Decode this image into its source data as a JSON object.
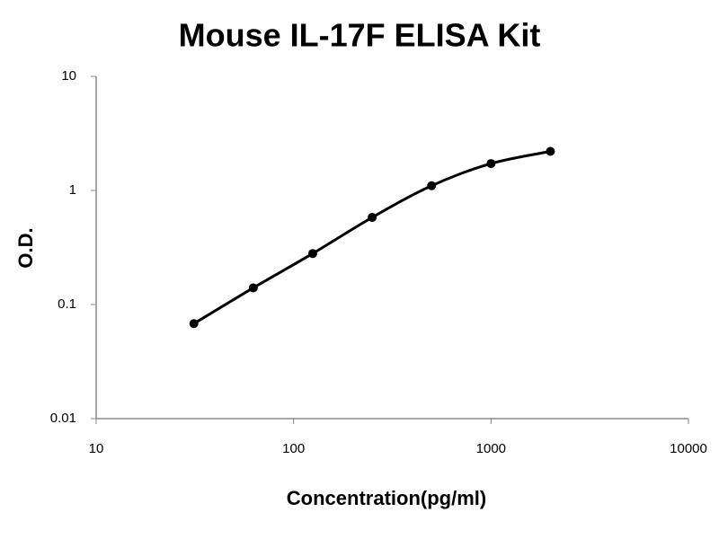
{
  "chart_data": {
    "type": "line",
    "title": "Mouse IL-17F ELISA Kit",
    "x_label": "Concentration(pg/ml)",
    "y_label": "O.D.",
    "x": [
      31.25,
      62.5,
      125,
      250,
      500,
      1000,
      2000
    ],
    "series": [
      {
        "color": "#000000",
        "values": [
          0.068,
          0.14,
          0.28,
          0.58,
          1.1,
          1.72,
          2.2
        ]
      }
    ],
    "markers": true,
    "x_log": true,
    "y_log": true,
    "xlim": [
      10,
      10000
    ],
    "xticks": [
      10,
      100,
      1000,
      10000
    ],
    "ylim": [
      0.01,
      10
    ],
    "yticks": [
      0.01,
      0.1,
      1,
      10
    ]
  }
}
